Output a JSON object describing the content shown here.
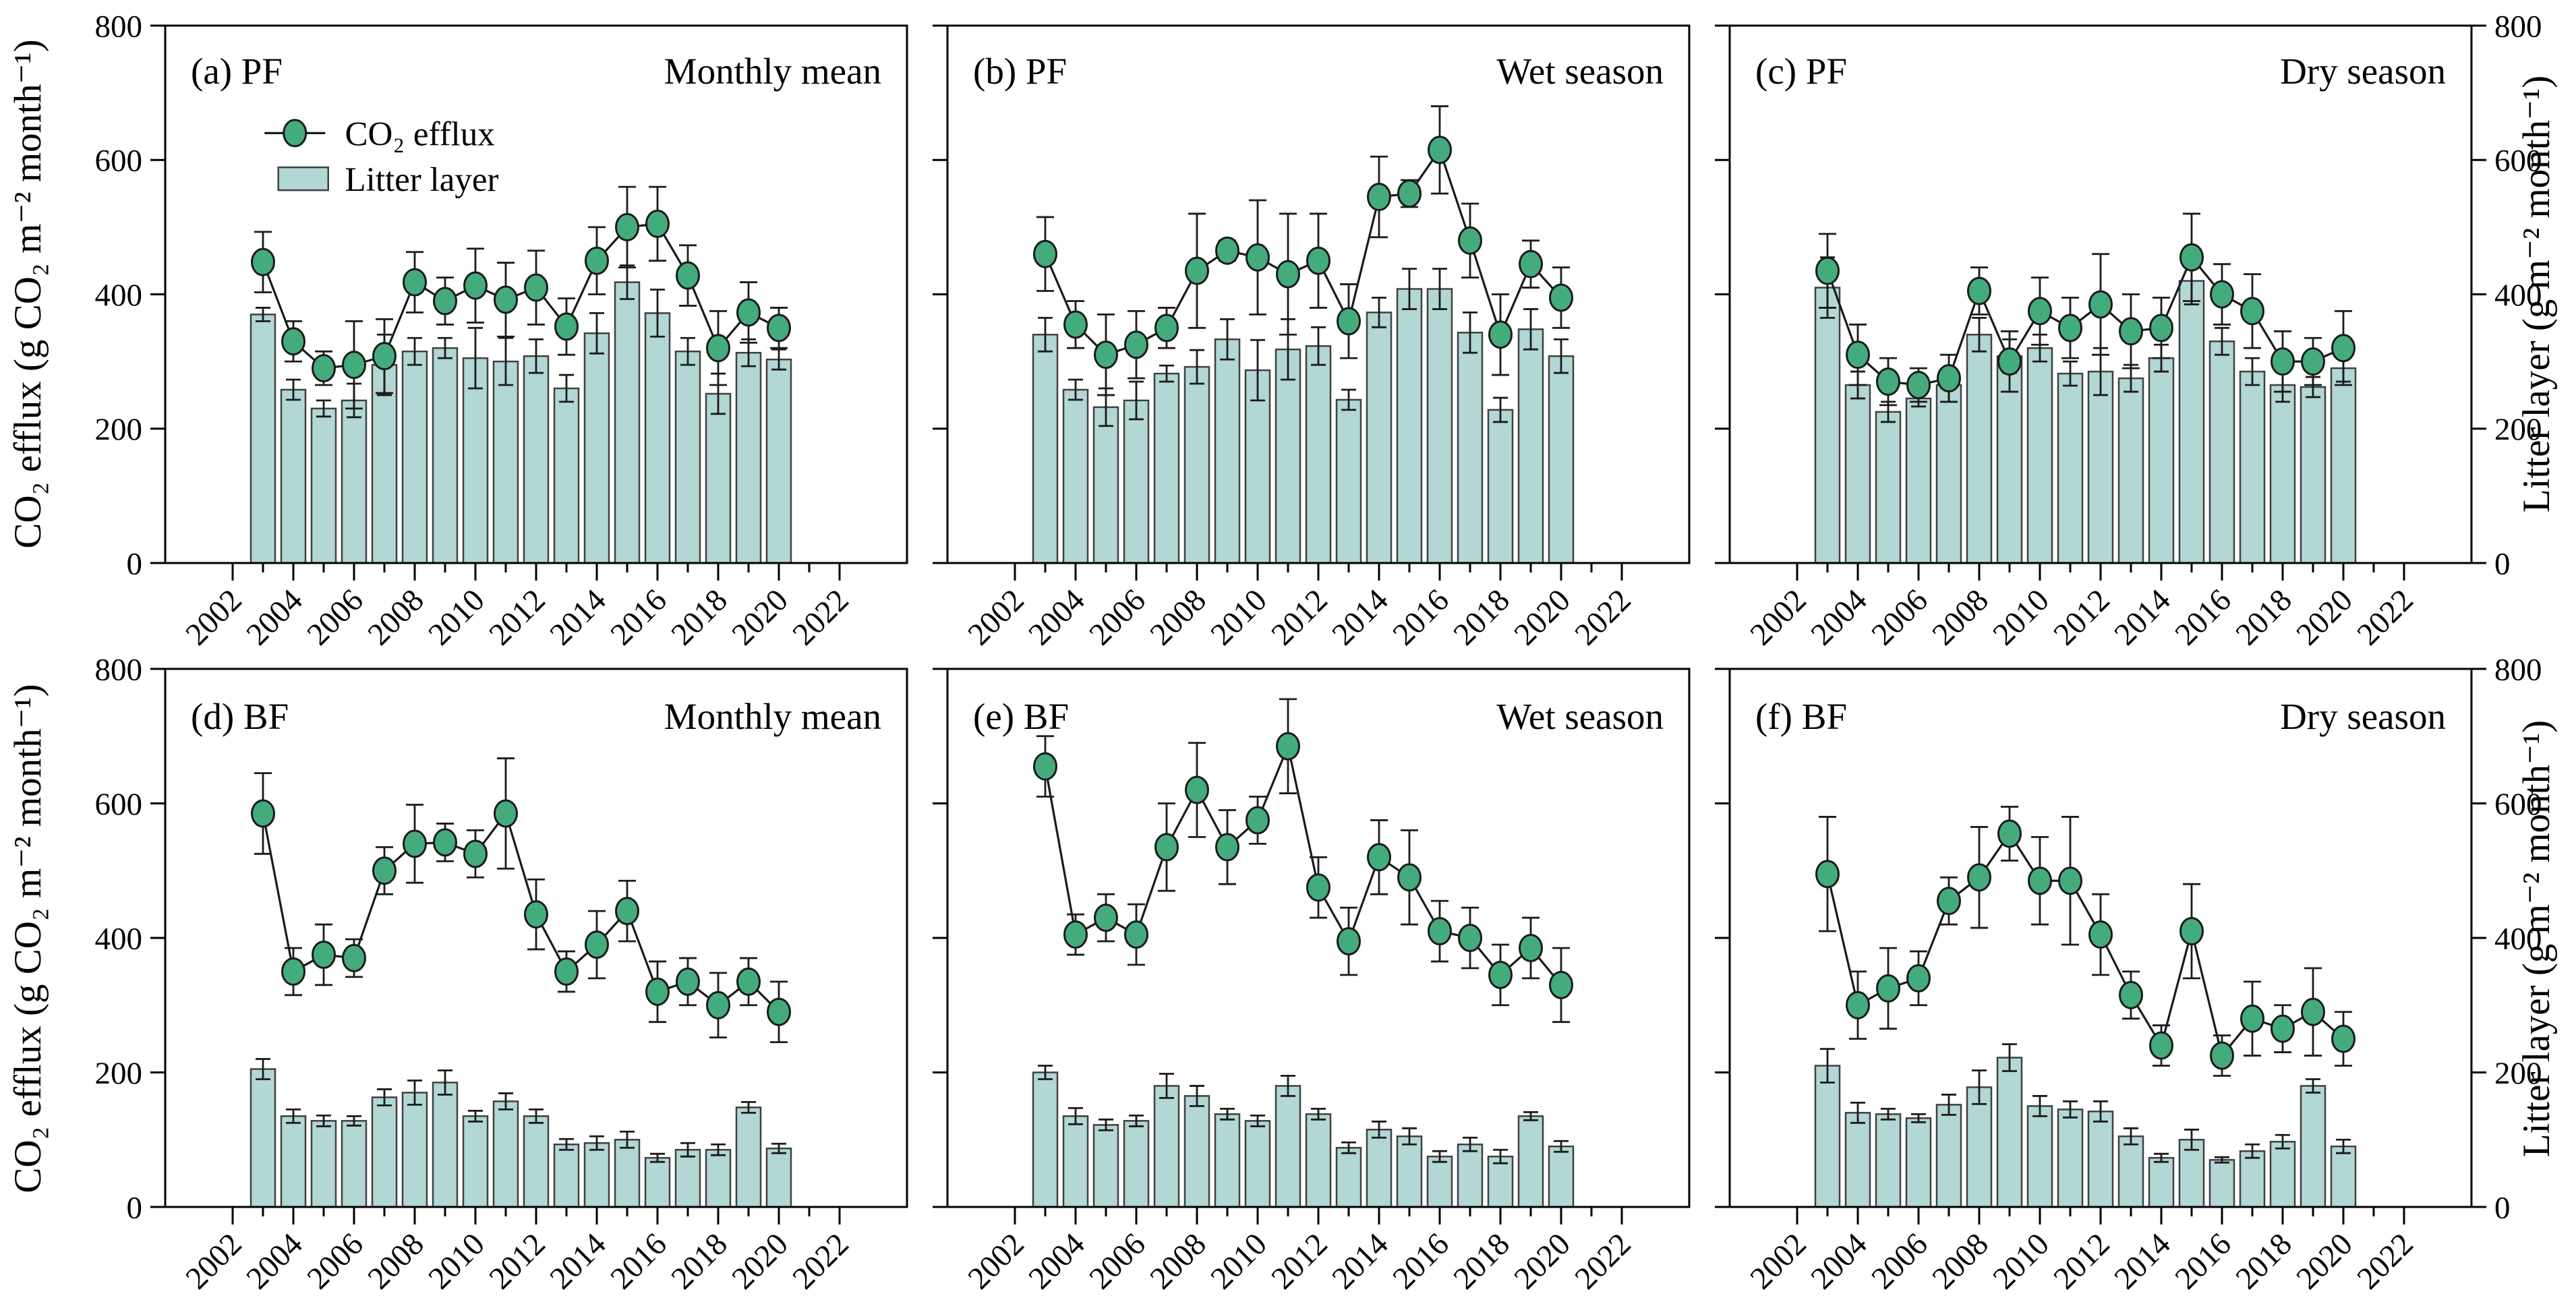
{
  "axes": {
    "left_title": "CO₂ efflux (g CO₂ m⁻² month⁻¹)",
    "right_title": "Litter layer (g m⁻² month⁻¹)",
    "ylim": [
      0,
      800
    ],
    "y_ticks": [
      0,
      200,
      400,
      600,
      800
    ],
    "x_ticks": [
      2002,
      2004,
      2006,
      2008,
      2010,
      2012,
      2014,
      2016,
      2018,
      2020,
      2022
    ],
    "years": [
      2003,
      2004,
      2005,
      2006,
      2007,
      2008,
      2009,
      2010,
      2011,
      2012,
      2013,
      2014,
      2015,
      2016,
      2017,
      2018,
      2019,
      2020
    ],
    "grid": false
  },
  "legend": {
    "position": "upper-left-panel-a",
    "items": [
      {
        "label": "CO₂ efflux",
        "type": "line-marker"
      },
      {
        "label": "Litter layer",
        "type": "bar"
      }
    ]
  },
  "colors": {
    "marker_fill": "#44ab7d",
    "bar_fill": "#b2d7d5",
    "bar_edge": "#404040",
    "line": "#1a1a1a",
    "spine": "#000000"
  },
  "chart_data": [
    {
      "id": "a",
      "type": "line+bar",
      "panel_label": "(a) PF",
      "season": "Monthly mean",
      "ylim": [
        0,
        800
      ],
      "series": [
        {
          "name": "CO₂ efflux",
          "type": "line",
          "values": [
            448,
            330,
            290,
            295,
            308,
            418,
            390,
            413,
            392,
            410,
            352,
            450,
            500,
            505,
            428,
            320,
            373,
            350
          ],
          "errors": [
            45,
            30,
            25,
            65,
            55,
            45,
            35,
            55,
            55,
            55,
            42,
            50,
            60,
            55,
            45,
            55,
            45,
            30
          ]
        },
        {
          "name": "Litter layer",
          "type": "bar",
          "values": [
            370,
            258,
            230,
            242,
            295,
            315,
            320,
            305,
            300,
            308,
            260,
            342,
            418,
            372,
            315,
            252,
            313,
            303
          ],
          "errors": [
            10,
            15,
            12,
            25,
            45,
            20,
            15,
            45,
            35,
            25,
            20,
            30,
            25,
            35,
            20,
            30,
            20,
            15
          ]
        }
      ]
    },
    {
      "id": "b",
      "type": "line+bar",
      "panel_label": "(b) PF",
      "season": "Wet season",
      "ylim": [
        0,
        800
      ],
      "series": [
        {
          "name": "CO₂ efflux",
          "type": "line",
          "values": [
            460,
            355,
            310,
            325,
            350,
            435,
            465,
            455,
            430,
            450,
            360,
            545,
            550,
            615,
            480,
            340,
            445,
            395
          ],
          "errors": [
            55,
            35,
            60,
            50,
            30,
            85,
            15,
            85,
            90,
            70,
            55,
            60,
            20,
            65,
            55,
            60,
            35,
            45
          ]
        },
        {
          "name": "Litter layer",
          "type": "bar",
          "values": [
            340,
            258,
            232,
            242,
            282,
            292,
            333,
            287,
            318,
            323,
            243,
            373,
            408,
            408,
            343,
            228,
            348,
            308
          ],
          "errors": [
            25,
            15,
            28,
            28,
            12,
            25,
            30,
            45,
            45,
            28,
            15,
            22,
            30,
            30,
            30,
            18,
            30,
            25
          ]
        }
      ]
    },
    {
      "id": "c",
      "type": "line+bar",
      "panel_label": "(c) PF",
      "season": "Dry season",
      "ylim": [
        0,
        800
      ],
      "series": [
        {
          "name": "CO₂ efflux",
          "type": "line",
          "values": [
            435,
            310,
            270,
            265,
            275,
            405,
            300,
            375,
            350,
            385,
            345,
            350,
            455,
            400,
            375,
            300,
            300,
            320
          ],
          "errors": [
            55,
            45,
            35,
            25,
            35,
            35,
            45,
            50,
            45,
            75,
            55,
            45,
            65,
            45,
            55,
            45,
            35,
            55
          ]
        },
        {
          "name": "Litter layer",
          "type": "bar",
          "values": [
            410,
            265,
            225,
            245,
            265,
            340,
            308,
            320,
            282,
            285,
            275,
            305,
            420,
            330,
            285,
            265,
            262,
            290
          ],
          "errors": [
            45,
            20,
            15,
            12,
            25,
            25,
            25,
            20,
            18,
            35,
            20,
            20,
            35,
            20,
            20,
            25,
            15,
            20
          ]
        }
      ]
    },
    {
      "id": "d",
      "type": "line+bar",
      "panel_label": "(d) BF",
      "season": "Monthly mean",
      "ylim": [
        0,
        800
      ],
      "series": [
        {
          "name": "CO₂ efflux",
          "type": "line",
          "values": [
            585,
            350,
            375,
            370,
            500,
            540,
            542,
            525,
            585,
            435,
            350,
            390,
            440,
            320,
            335,
            300,
            335,
            290
          ],
          "errors": [
            60,
            35,
            45,
            28,
            35,
            58,
            28,
            35,
            82,
            52,
            30,
            50,
            45,
            45,
            35,
            48,
            35,
            45
          ]
        },
        {
          "name": "Litter layer",
          "type": "bar",
          "values": [
            205,
            135,
            128,
            128,
            163,
            170,
            185,
            135,
            157,
            135,
            93,
            95,
            100,
            73,
            85,
            85,
            148,
            87
          ],
          "errors": [
            15,
            10,
            8,
            7,
            12,
            18,
            18,
            8,
            12,
            10,
            8,
            10,
            12,
            6,
            10,
            8,
            8,
            7
          ]
        }
      ]
    },
    {
      "id": "e",
      "type": "line+bar",
      "panel_label": "(e) BF",
      "season": "Wet season",
      "ylim": [
        0,
        800
      ],
      "series": [
        {
          "name": "CO₂ efflux",
          "type": "line",
          "values": [
            655,
            405,
            430,
            405,
            535,
            620,
            535,
            575,
            685,
            475,
            395,
            520,
            490,
            410,
            400,
            345,
            385,
            330
          ],
          "errors": [
            45,
            30,
            35,
            45,
            65,
            70,
            55,
            35,
            70,
            45,
            50,
            55,
            70,
            45,
            45,
            45,
            45,
            55
          ]
        },
        {
          "name": "Litter layer",
          "type": "bar",
          "values": [
            200,
            135,
            122,
            128,
            180,
            165,
            138,
            128,
            180,
            138,
            88,
            115,
            105,
            75,
            93,
            75,
            135,
            90
          ],
          "errors": [
            10,
            12,
            8,
            8,
            18,
            15,
            8,
            8,
            15,
            8,
            8,
            12,
            12,
            8,
            10,
            10,
            6,
            8
          ]
        }
      ]
    },
    {
      "id": "f",
      "type": "line+bar",
      "panel_label": "(f) BF",
      "season": "Dry season",
      "ylim": [
        0,
        800
      ],
      "series": [
        {
          "name": "CO₂ efflux",
          "type": "line",
          "values": [
            495,
            300,
            325,
            340,
            455,
            490,
            555,
            485,
            485,
            405,
            315,
            240,
            410,
            225,
            280,
            265,
            290,
            250
          ],
          "errors": [
            85,
            50,
            60,
            40,
            35,
            75,
            40,
            65,
            95,
            60,
            35,
            30,
            70,
            30,
            55,
            35,
            65,
            40
          ]
        },
        {
          "name": "Litter layer",
          "type": "bar",
          "values": [
            210,
            140,
            138,
            132,
            152,
            178,
            222,
            150,
            145,
            142,
            105,
            73,
            100,
            70,
            83,
            97,
            180,
            90
          ],
          "errors": [
            25,
            15,
            8,
            6,
            15,
            25,
            20,
            15,
            12,
            15,
            12,
            6,
            15,
            4,
            10,
            10,
            10,
            10
          ]
        }
      ]
    }
  ]
}
